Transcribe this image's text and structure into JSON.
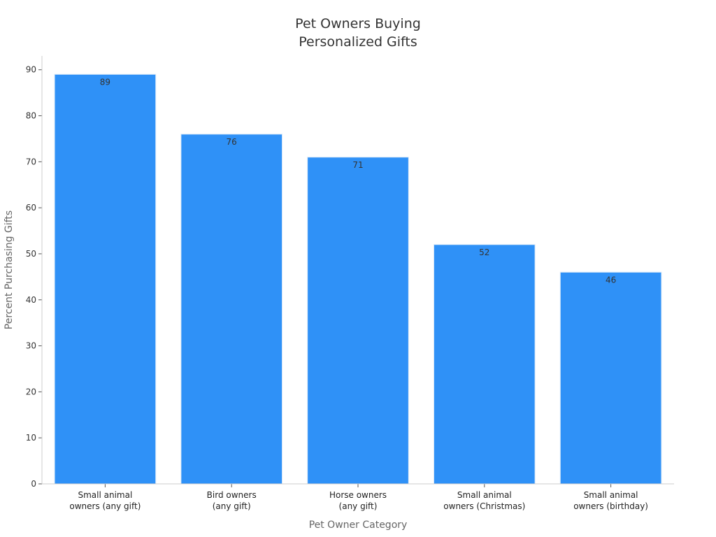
{
  "chart_data": {
    "type": "bar",
    "title": [
      "Pet Owners Buying",
      "Personalized Gifts"
    ],
    "xlabel": "Pet Owner Category",
    "ylabel": "Percent Purchasing Gifts",
    "categories": [
      [
        "Small animal",
        "owners (any gift)"
      ],
      [
        "Bird owners",
        "(any gift)"
      ],
      [
        "Horse owners",
        "(any gift)"
      ],
      [
        "Small animal",
        "owners (Christmas)"
      ],
      [
        "Small animal",
        "owners (birthday)"
      ]
    ],
    "values": [
      89,
      76,
      71,
      52,
      46
    ],
    "ylim": [
      0,
      93
    ],
    "yticks": [
      0,
      10,
      20,
      30,
      40,
      50,
      60,
      70,
      80,
      90
    ],
    "grid": false,
    "legend": "none",
    "colors": {
      "bar": "#2f91f7",
      "axis": "#cccccc",
      "tick": "#555555"
    }
  }
}
